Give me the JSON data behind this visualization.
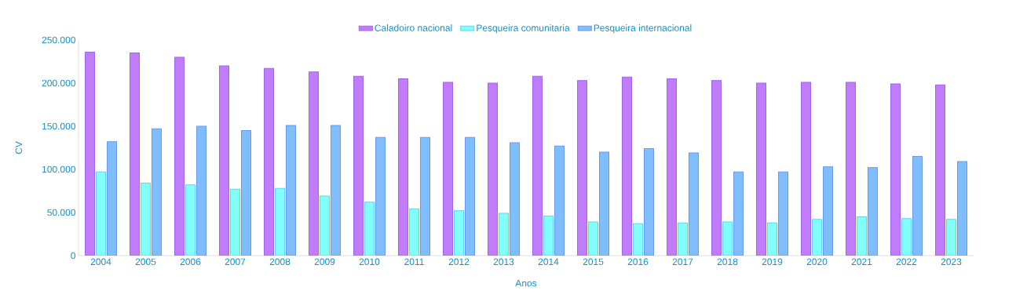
{
  "chart_data": {
    "type": "bar",
    "xlabel": "Anos",
    "ylabel": "CV",
    "categories": [
      "2004",
      "2005",
      "2006",
      "2007",
      "2008",
      "2009",
      "2010",
      "2011",
      "2012",
      "2013",
      "2014",
      "2015",
      "2016",
      "2017",
      "2018",
      "2019",
      "2020",
      "2021",
      "2022",
      "2023"
    ],
    "series": [
      {
        "name": "Caladoiro nacional",
        "color": "#c17cfc",
        "values": [
          236000,
          235000,
          230000,
          220000,
          217000,
          213000,
          208000,
          205000,
          201000,
          200000,
          208000,
          203000,
          207000,
          205000,
          203000,
          200000,
          201000,
          201000,
          199000,
          198000
        ]
      },
      {
        "name": "Pesqueira comunitaria",
        "color": "#80fffb",
        "values": [
          97000,
          84000,
          82000,
          77000,
          78000,
          69000,
          62000,
          54000,
          52000,
          49000,
          46000,
          39000,
          37000,
          38000,
          39000,
          38000,
          42000,
          45000,
          43000,
          42000
        ]
      },
      {
        "name": "Pesqueira internacional",
        "color": "#80bdfc",
        "values": [
          132000,
          147000,
          150000,
          145000,
          151000,
          151000,
          137000,
          137000,
          137000,
          131000,
          127000,
          120000,
          124000,
          119000,
          97000,
          97000,
          103000,
          102000,
          115000,
          109000
        ]
      }
    ],
    "ylim": [
      0,
      250000
    ],
    "yticks": [
      {
        "value": 0,
        "label": "0"
      },
      {
        "value": 50000,
        "label": "50.000"
      },
      {
        "value": 100000,
        "label": "100.000"
      },
      {
        "value": 150000,
        "label": "150.000"
      },
      {
        "value": 200000,
        "label": "200.000"
      },
      {
        "value": 250000,
        "label": "250.000"
      }
    ],
    "grid": false,
    "legend": "top"
  }
}
